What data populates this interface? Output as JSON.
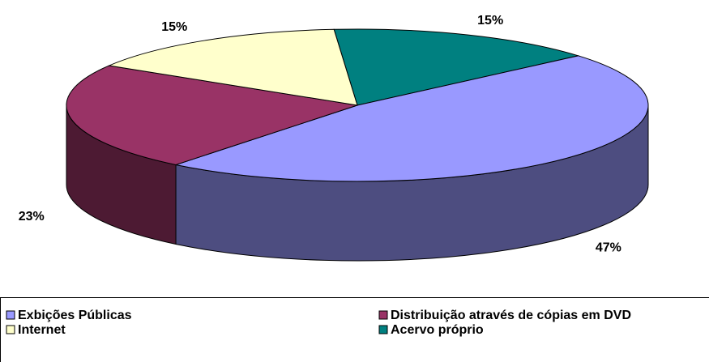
{
  "chart_data": {
    "type": "pie",
    "categories": [
      "Exbições Públicas",
      "Distribuição através de cópias em DVD",
      "Internet",
      "Acervo próprio"
    ],
    "values": [
      47,
      23,
      15,
      15
    ],
    "value_labels": [
      "47%",
      "23%",
      "15%",
      "15%"
    ],
    "colors": [
      "#9999ff",
      "#993366",
      "#ffffcc",
      "#008080"
    ],
    "side_colors": [
      "#4d4d80",
      "#4d1a33",
      "#80806a",
      "#004040"
    ],
    "legend": "bottom"
  }
}
